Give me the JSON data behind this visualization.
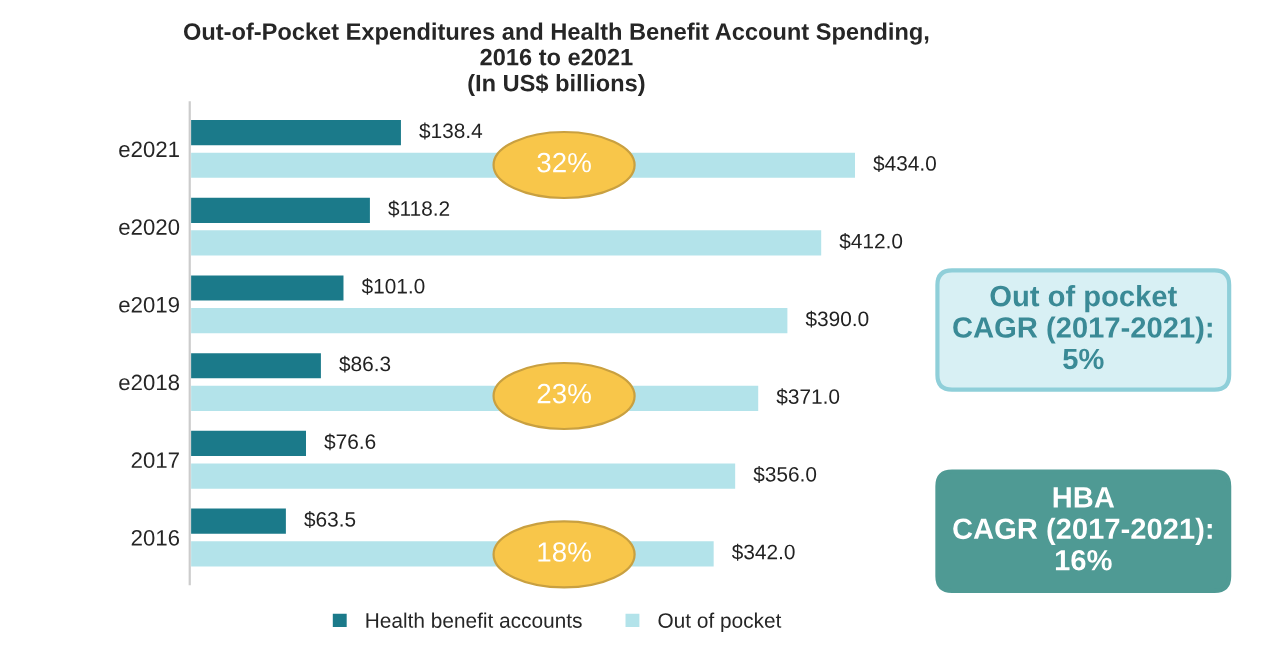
{
  "chart_data": {
    "type": "bar",
    "orientation": "horizontal",
    "title": "Out-of-Pocket Expenditures and Health Benefit Account Spending,\n2016 to e2021\n(In US$ billions)",
    "categories": [
      "e2021",
      "e2020",
      "e2019",
      "e2018",
      "2017",
      "2016"
    ],
    "series": [
      {
        "name": "Health benefit accounts",
        "color": "#1b7a8a",
        "values": [
          138.4,
          118.2,
          101.0,
          86.3,
          76.6,
          63.5
        ],
        "value_labels": [
          "$138.4",
          "$118.2",
          "$101.0",
          "$86.3",
          "$76.6",
          "$63.5"
        ]
      },
      {
        "name": "Out of pocket",
        "color": "#b3e3ea",
        "values": [
          434.0,
          412.0,
          390.0,
          371.0,
          356.0,
          342.0
        ],
        "value_labels": [
          "$434.0",
          "$412.0",
          "$390.0",
          "$371.0",
          "$356.0",
          "$342.0"
        ]
      }
    ],
    "annotations": [
      "32%",
      "23%",
      "18%",
      "Out of pocket\nCAGR (2017-2021):\n5%",
      "HBA\nCAGR (2017-2021):\n16%"
    ],
    "legend": "bottom",
    "grid": false
  }
}
